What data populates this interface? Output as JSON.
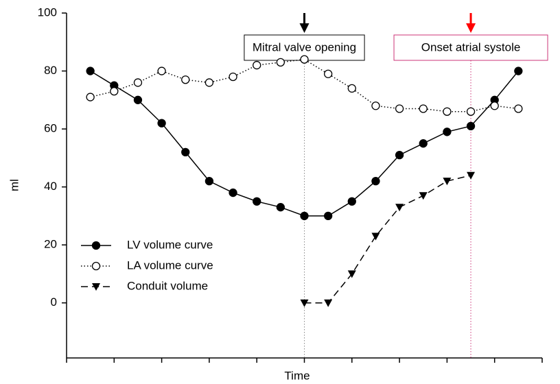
{
  "chart_data": {
    "type": "line",
    "xlabel": "Time",
    "ylabel": "ml",
    "x": [
      1,
      2,
      3,
      4,
      5,
      6,
      7,
      8,
      9,
      10,
      11,
      12,
      13,
      14,
      15,
      16,
      17,
      18,
      19
    ],
    "xlim": [
      0,
      20
    ],
    "xticks": [
      0,
      2,
      4,
      6,
      8,
      10,
      12,
      14,
      16,
      18,
      20
    ],
    "ylim": [
      -19,
      100
    ],
    "yticks": [
      0,
      20,
      40,
      60,
      80,
      100
    ],
    "legend": "lower left",
    "series": [
      {
        "name": "LV volume curve",
        "color": "#000000",
        "line_style": "solid",
        "marker": "filled-circle",
        "values": [
          80,
          75,
          70,
          62,
          52,
          42,
          38,
          35,
          33,
          30,
          30,
          35,
          42,
          51,
          55,
          59,
          61,
          70,
          80
        ]
      },
      {
        "name": "LA volume curve",
        "color": "#000000",
        "line_style": "dotted",
        "marker": "open-circle",
        "values": [
          71,
          73,
          76,
          80,
          77,
          76,
          78,
          82,
          83,
          84,
          79,
          74,
          68,
          67,
          67,
          66,
          66,
          68,
          67
        ]
      },
      {
        "name": "Conduit volume",
        "color": "#000000",
        "line_style": "dashed",
        "marker": "triangle-down",
        "values": [
          null,
          null,
          null,
          null,
          null,
          null,
          null,
          null,
          null,
          0,
          0,
          10,
          23,
          33,
          37,
          42,
          44,
          null,
          null
        ]
      }
    ],
    "annotations": [
      {
        "text": "Mitral valve opening",
        "x": 10,
        "color": "#000000",
        "text_color": "#000000",
        "line_color": "#888888"
      },
      {
        "text": "Onset atrial systole",
        "x": 17,
        "color": "#ff0000",
        "text_color": "#c0392b",
        "line_color": "#cc3377"
      }
    ]
  }
}
